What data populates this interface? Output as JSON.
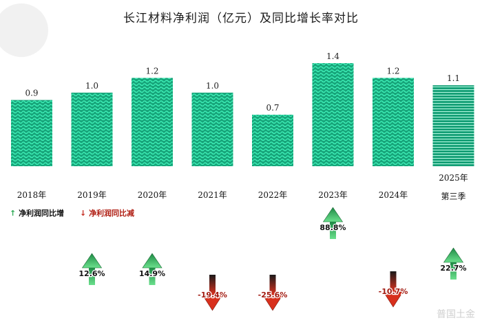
{
  "title": "长江材料净利润（亿元）及同比增长率对比",
  "legend": {
    "increase_label": "净利润同比增",
    "decrease_label": "净利润同比减"
  },
  "watermark": "普国土金",
  "colors": {
    "bar_light": "#29dca6",
    "bar_dark": "#14906a",
    "increase": "#2eaa55",
    "decrease": "#c42a1f"
  },
  "chart_data": {
    "type": "bar",
    "title": "长江材料净利润（亿元）及同比增长率对比",
    "categories": [
      "2018年",
      "2019年",
      "2020年",
      "2021年",
      "2022年",
      "2023年",
      "2024年",
      "2025年第三季"
    ],
    "category_lines": [
      [
        "2018年"
      ],
      [
        "2019年"
      ],
      [
        "2020年"
      ],
      [
        "2021年"
      ],
      [
        "2022年"
      ],
      [
        "2023年"
      ],
      [
        "2024年"
      ],
      [
        "2025年",
        "第三季"
      ]
    ],
    "series": [
      {
        "name": "净利润",
        "values": [
          0.9,
          1.0,
          1.2,
          1.0,
          0.7,
          1.4,
          1.2,
          1.1
        ],
        "labels": [
          "0.9",
          "1.0",
          "1.2",
          "1.0",
          "0.7",
          "1.4",
          "1.2",
          "1.1"
        ]
      },
      {
        "name": "同比增长率",
        "values": [
          null,
          12.6,
          14.9,
          -19.4,
          -25.6,
          88.8,
          -10.7,
          22.7
        ],
        "labels": [
          "",
          "12.6%",
          "14.9%",
          "-19.4%",
          "-25.6%",
          "88.8%",
          "-10.7%",
          "22.7%"
        ]
      }
    ],
    "ylim": [
      0,
      1.5
    ],
    "grid": false
  }
}
